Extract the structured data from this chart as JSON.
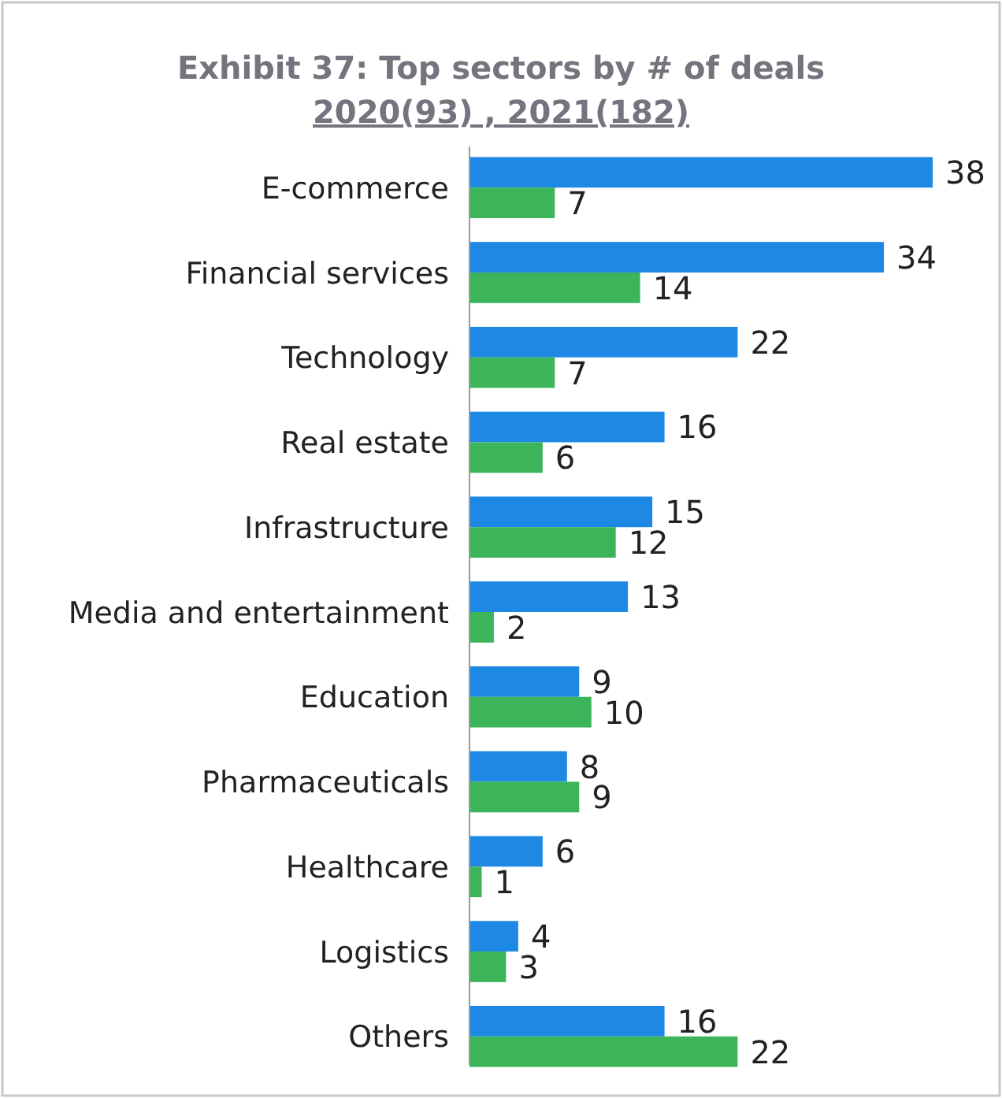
{
  "chart_data": {
    "type": "bar",
    "orientation": "horizontal",
    "title": "Exhibit 37: Top sectors by # of deals",
    "subtitle": "2020(93) , 2021(182)",
    "categories": [
      "E-commerce",
      "Financial services",
      "Technology",
      "Real estate",
      "Infrastructure",
      "Media and entertainment",
      "Education",
      "Pharmaceuticals",
      "Healthcare",
      "Logistics",
      "Others"
    ],
    "series": [
      {
        "color": "#1e88e5",
        "values": [
          38,
          34,
          22,
          16,
          15,
          13,
          9,
          8,
          6,
          4,
          16
        ]
      },
      {
        "color": "#3cb55a",
        "values": [
          7,
          14,
          7,
          6,
          12,
          2,
          10,
          9,
          1,
          3,
          22
        ]
      }
    ],
    "data_labels": true
  }
}
